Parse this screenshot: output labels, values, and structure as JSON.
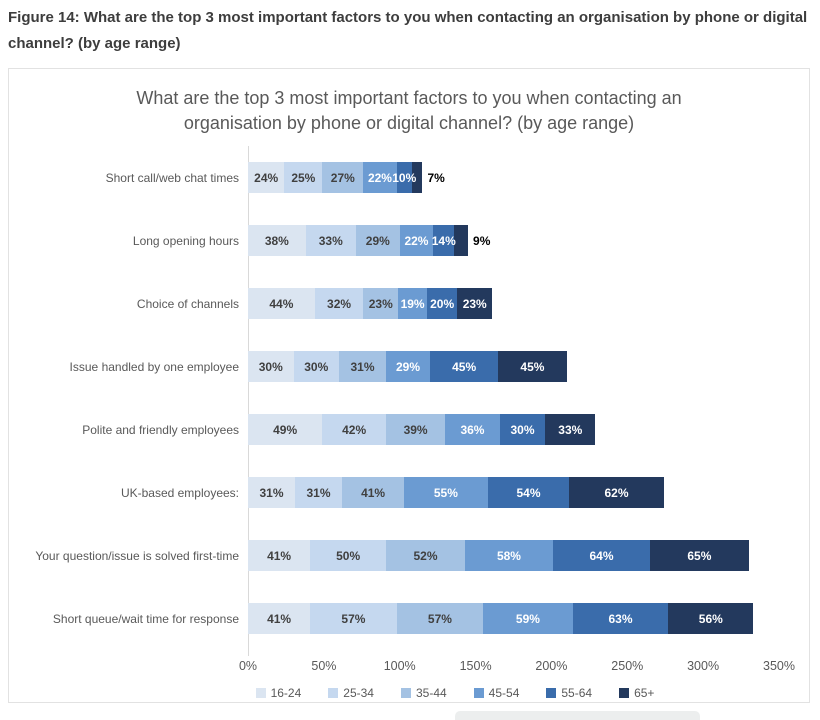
{
  "figure_caption": "Figure 14: What are the top 3 most important factors to you when contacting an organisation by phone or digital channel? (by age range)",
  "chart_data": {
    "type": "bar",
    "stacked": true,
    "orientation": "horizontal",
    "title": "What are the top 3 most important factors to you when contacting an organisation by phone or digital channel? (by age range)",
    "categories": [
      "Short call/web chat times",
      "Long opening hours",
      "Choice of channels",
      "Issue handled by one employee",
      "Polite and friendly employees",
      "UK-based employees:",
      "Your question/issue is solved first-time",
      "Short queue/wait time for response"
    ],
    "series": [
      {
        "name": "16-24",
        "color": "#dbe5f1",
        "values": [
          24,
          38,
          44,
          30,
          49,
          31,
          41,
          41
        ]
      },
      {
        "name": "25-34",
        "color": "#c5d8ef",
        "values": [
          25,
          33,
          32,
          30,
          42,
          31,
          50,
          57
        ]
      },
      {
        "name": "35-44",
        "color": "#a4c2e3",
        "values": [
          27,
          29,
          23,
          31,
          39,
          41,
          52,
          57
        ]
      },
      {
        "name": "45-54",
        "color": "#6b9bd2",
        "values": [
          22,
          22,
          19,
          29,
          36,
          55,
          58,
          59
        ]
      },
      {
        "name": "55-64",
        "color": "#3a6cab",
        "values": [
          10,
          14,
          20,
          45,
          30,
          54,
          64,
          63
        ]
      },
      {
        "name": "65+",
        "color": "#23395d",
        "values": [
          7,
          9,
          23,
          45,
          33,
          62,
          65,
          56
        ]
      }
    ],
    "value_suffix": "%",
    "xticks": [
      "0%",
      "50%",
      "100%",
      "150%",
      "200%",
      "250%",
      "300%",
      "350%"
    ],
    "xlim": [
      0,
      350
    ],
    "grid": false,
    "legend_position": "bottom",
    "label_color_light_segments": "#404040",
    "label_color_dark_segments": "#ffffff",
    "outside_label_color": "#000000",
    "axis_color": "#d9d9d9",
    "text_color": "#595959"
  }
}
